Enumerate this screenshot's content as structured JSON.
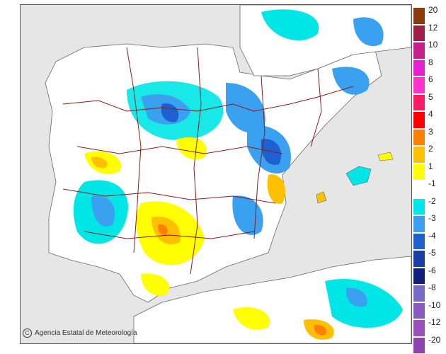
{
  "credit": {
    "copyright_symbol": "C",
    "text": "Agencia Estatal de Meteorología"
  },
  "legend": {
    "labels": [
      "20",
      "12",
      "10",
      "8",
      "6",
      "5",
      "4",
      "3",
      "2",
      "1",
      "-1",
      "-2",
      "-3",
      "-4",
      "-5",
      "-6",
      "-8",
      "-10",
      "-12",
      "-20"
    ],
    "colors": [
      "#8b3a0e",
      "#a0204a",
      "#c61f8a",
      "#e61fd0",
      "#ff33cc",
      "#ff1a66",
      "#ff0000",
      "#ff8000",
      "#ffc000",
      "#ffff00",
      "#ffffff",
      "#00e6e6",
      "#3aa0f0",
      "#1e60d0",
      "#1a3fa8",
      "#10207a",
      "#7a6ac8",
      "#8a5ac0",
      "#9a50b8",
      "#8e44ad"
    ]
  },
  "map_colors": {
    "sea": "#e6e6e6",
    "land": "#ffffff",
    "border": "#8b1a1a",
    "cyan": "#00e6e6",
    "blue": "#3aa0f0",
    "darkblue": "#1e60d0",
    "yellow": "#ffff00",
    "orange": "#ffc000",
    "red": "#ff8000"
  }
}
